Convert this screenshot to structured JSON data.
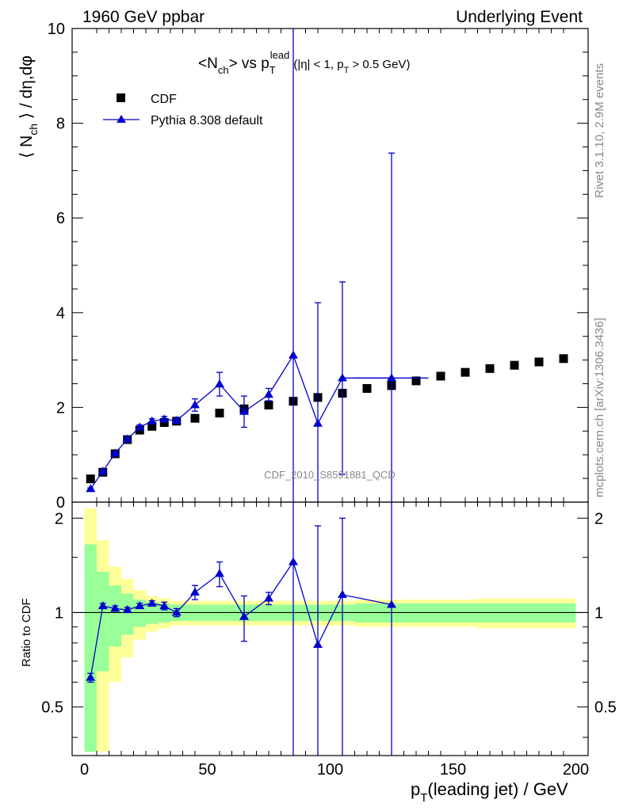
{
  "header": {
    "left": "1960 GeV ppbar",
    "right": "Underlying Event"
  },
  "side_text": {
    "rivet": "Rivet 3.1.10,  2.9M events",
    "mcplots": "mcplots.cern.ch [arXiv:1306.3436]"
  },
  "watermark": "CDF_2010_S8591881_QCD",
  "colors": {
    "data": "#000000",
    "mc": "#0000cc",
    "band_inner": "#99ff99",
    "band_outer": "#ffff99"
  },
  "chart_data": {
    "type": "scatter",
    "title": {
      "main": "<N",
      "main_sub": "ch",
      "main_mid": "> vs p",
      "main_sub2": "T",
      "main_sup": "lead",
      "cut": "(|η| < 1, p",
      "cut_sub": "T",
      "cut_end": " > 0.5 GeV)"
    },
    "xlabel": {
      "main": "p",
      "sub": "T",
      "rest": "(leading jet) / GeV"
    },
    "ylabel": {
      "pre": "⟨ N",
      "sub": "ch",
      "post": " ⟩ / dη,dφ"
    },
    "ratio_ylabel": "Ratio to CDF",
    "xlim": [
      -5,
      205
    ],
    "ylim": [
      0,
      10
    ],
    "ratio_ylim": [
      0.35,
      2.25
    ],
    "x_ticks": [
      0,
      50,
      100,
      150,
      200
    ],
    "y_ticks": [
      0,
      2,
      4,
      6,
      8,
      10
    ],
    "ratio_ticks": [
      0.5,
      1,
      2
    ],
    "legend": [
      {
        "label": "CDF",
        "marker": "square"
      },
      {
        "label": "Pythia 8.308 default",
        "marker": "triangle"
      }
    ],
    "legend_position": "top-left",
    "series": [
      {
        "name": "CDF",
        "x": [
          2.5,
          7.5,
          12.5,
          17.5,
          22.5,
          27.5,
          32.5,
          37.5,
          45,
          55,
          65,
          75,
          85,
          95,
          105,
          115,
          125,
          135,
          145,
          155,
          165,
          175,
          185,
          195
        ],
        "y": [
          0.49,
          0.63,
          1.02,
          1.32,
          1.52,
          1.6,
          1.68,
          1.71,
          1.77,
          1.88,
          1.97,
          2.05,
          2.13,
          2.21,
          2.3,
          2.4,
          2.46,
          2.56,
          2.66,
          2.74,
          2.82,
          2.89,
          2.96,
          3.03
        ]
      },
      {
        "name": "Pythia 8.308 default",
        "x": [
          2.5,
          7.5,
          12.5,
          17.5,
          22.5,
          27.5,
          32.5,
          37.5,
          45,
          55,
          65,
          75,
          85,
          95,
          105,
          125
        ],
        "y": [
          0.28,
          0.65,
          1.03,
          1.33,
          1.58,
          1.71,
          1.75,
          1.72,
          2.05,
          2.49,
          1.91,
          2.27,
          3.1,
          1.66,
          2.62,
          2.62
        ],
        "yerr": [
          0.02,
          0.02,
          0.03,
          0.04,
          0.05,
          0.05,
          0.06,
          0.06,
          0.13,
          0.25,
          0.33,
          0.13,
          7.0,
          2.55,
          2.03,
          4.75
        ],
        "x_lo": [
          0,
          5,
          10,
          15,
          20,
          25,
          30,
          35,
          40,
          50,
          60,
          70,
          80,
          90,
          100,
          110
        ],
        "x_hi": [
          5,
          10,
          15,
          20,
          25,
          30,
          35,
          40,
          50,
          60,
          70,
          80,
          90,
          100,
          110,
          140
        ]
      }
    ],
    "ratio": {
      "x": [
        2.5,
        7.5,
        12.5,
        17.5,
        22.5,
        27.5,
        32.5,
        37.5,
        45,
        55,
        65,
        75,
        85,
        95,
        105,
        125
      ],
      "y": [
        0.62,
        1.05,
        1.03,
        1.02,
        1.05,
        1.07,
        1.05,
        1.0,
        1.16,
        1.33,
        0.97,
        1.11,
        1.45,
        0.79,
        1.14,
        1.06
      ],
      "yerr": [
        0.02,
        0.02,
        0.02,
        0.02,
        0.02,
        0.02,
        0.03,
        0.03,
        0.06,
        0.12,
        0.16,
        0.05,
        3.2,
        1.1,
        0.86,
        1.9
      ],
      "band": {
        "x_lo": [
          0,
          5,
          10,
          15,
          20,
          25,
          30,
          35,
          40,
          50,
          60,
          70,
          80,
          90,
          100,
          110,
          120,
          130,
          140,
          150,
          160,
          170,
          180,
          190
        ],
        "x_hi": [
          5,
          10,
          15,
          20,
          25,
          30,
          35,
          40,
          50,
          60,
          70,
          80,
          90,
          100,
          110,
          120,
          130,
          140,
          150,
          160,
          170,
          180,
          190,
          200
        ],
        "inner": [
          0.65,
          0.35,
          0.22,
          0.15,
          0.1,
          0.08,
          0.07,
          0.06,
          0.06,
          0.06,
          0.06,
          0.06,
          0.06,
          0.06,
          0.06,
          0.07,
          0.07,
          0.07,
          0.07,
          0.07,
          0.07,
          0.07,
          0.07,
          0.07
        ],
        "outer": [
          1.15,
          0.7,
          0.4,
          0.28,
          0.18,
          0.13,
          0.11,
          0.09,
          0.09,
          0.09,
          0.09,
          0.09,
          0.09,
          0.09,
          0.09,
          0.1,
          0.1,
          0.1,
          0.1,
          0.1,
          0.11,
          0.11,
          0.11,
          0.11
        ]
      }
    }
  }
}
